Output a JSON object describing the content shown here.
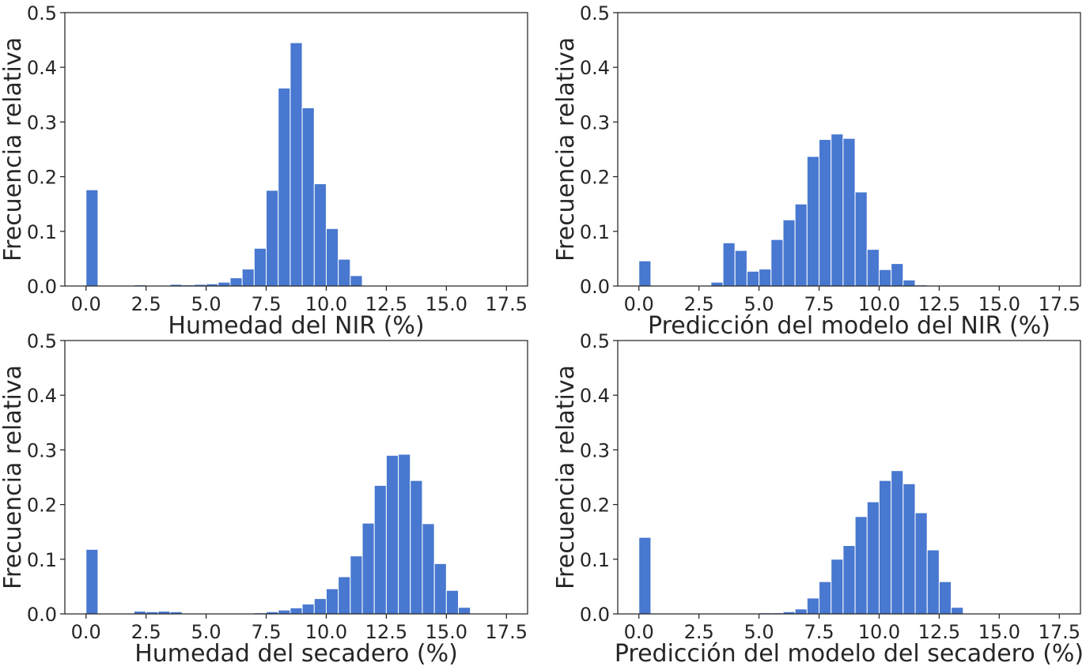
{
  "chart_data": [
    {
      "type": "bar",
      "xlabel": "Humedad del NIR (%)",
      "ylabel": "Frecuencia relativa",
      "xlim": [
        -0.88,
        18.38
      ],
      "ylim": [
        0,
        0.5
      ],
      "xticks": [
        "0.0",
        "2.5",
        "5.0",
        "7.5",
        "10.0",
        "12.5",
        "15.0",
        "17.5"
      ],
      "yticks": [
        "0.0",
        "0.1",
        "0.2",
        "0.3",
        "0.4",
        "0.5"
      ],
      "bar_color": "#4878d0",
      "bin_start": 0,
      "bin_width": 0.5,
      "values": [
        0.176,
        0,
        0,
        0,
        0.002,
        0,
        0,
        0.003,
        0.002,
        0.003,
        0.004,
        0.007,
        0.015,
        0.031,
        0.069,
        0.175,
        0.362,
        0.445,
        0.326,
        0.187,
        0.105,
        0.049,
        0.019,
        0,
        0,
        0,
        0,
        0,
        0,
        0,
        0,
        0,
        0,
        0,
        0,
        0
      ]
    },
    {
      "type": "bar",
      "xlabel": "Predicción del modelo del NIR (%)",
      "ylabel": "Frecuencia relativa",
      "xlim": [
        -0.88,
        18.38
      ],
      "ylim": [
        0,
        0.5
      ],
      "xticks": [
        "0.0",
        "2.5",
        "5.0",
        "7.5",
        "10.0",
        "12.5",
        "15.0",
        "17.5"
      ],
      "yticks": [
        "0.0",
        "0.1",
        "0.2",
        "0.3",
        "0.4",
        "0.5"
      ],
      "bar_color": "#4878d0",
      "bin_start": 0,
      "bin_width": 0.5,
      "values": [
        0.046,
        0,
        0,
        0,
        0,
        0,
        0.007,
        0.079,
        0.065,
        0.027,
        0.031,
        0.085,
        0.121,
        0.15,
        0.237,
        0.268,
        0.278,
        0.27,
        0.172,
        0.067,
        0.03,
        0.041,
        0.011,
        0.002,
        0,
        0,
        0,
        0,
        0,
        0,
        0,
        0,
        0,
        0,
        0,
        0
      ]
    },
    {
      "type": "bar",
      "xlabel": "Humedad del secadero (%)",
      "ylabel": "Frecuencia relativa",
      "xlim": [
        -0.88,
        18.38
      ],
      "ylim": [
        0,
        0.5
      ],
      "xticks": [
        "0.0",
        "2.5",
        "5.0",
        "7.5",
        "10.0",
        "12.5",
        "15.0",
        "17.5"
      ],
      "yticks": [
        "0.0",
        "0.1",
        "0.2",
        "0.3",
        "0.4",
        "0.5"
      ],
      "bar_color": "#4878d0",
      "bin_start": 0,
      "bin_width": 0.5,
      "values": [
        0.118,
        0,
        0,
        0,
        0.005,
        0.004,
        0.005,
        0.004,
        0,
        0,
        0,
        0,
        0,
        0,
        0.002,
        0.004,
        0.007,
        0.011,
        0.018,
        0.028,
        0.046,
        0.068,
        0.106,
        0.166,
        0.235,
        0.29,
        0.292,
        0.244,
        0.165,
        0.092,
        0.043,
        0.012,
        0,
        0,
        0,
        0
      ]
    },
    {
      "type": "bar",
      "xlabel": "Predicción del modelo del secadero (%)",
      "ylabel": "Frecuencia relativa",
      "xlim": [
        -0.88,
        18.38
      ],
      "ylim": [
        0,
        0.5
      ],
      "xticks": [
        "0.0",
        "2.5",
        "5.0",
        "7.5",
        "10.0",
        "12.5",
        "15.0",
        "17.5"
      ],
      "yticks": [
        "0.0",
        "0.1",
        "0.2",
        "0.3",
        "0.4",
        "0.5"
      ],
      "bar_color": "#4878d0",
      "bin_start": 0,
      "bin_width": 0.5,
      "values": [
        0.14,
        0,
        0,
        0,
        0,
        0,
        0,
        0,
        0,
        0,
        0.002,
        0.002,
        0.004,
        0.009,
        0.029,
        0.059,
        0.1,
        0.125,
        0.178,
        0.205,
        0.244,
        0.262,
        0.238,
        0.185,
        0.117,
        0.059,
        0.012,
        0,
        0,
        0,
        0,
        0,
        0,
        0,
        0,
        0
      ]
    }
  ]
}
